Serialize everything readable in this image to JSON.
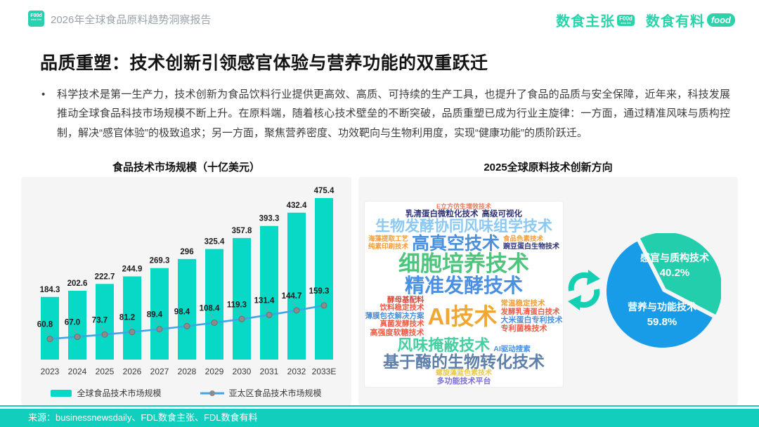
{
  "header": {
    "logo_main": "F00d",
    "logo_sub": "data link",
    "report_title": "2026年全球食品原料趋势洞察报告",
    "brand1": "数食主张",
    "brand1_badge_main": "F00d",
    "brand1_badge_sub": "data link",
    "brand2": "数食有料",
    "brand2_badge": "food"
  },
  "title": "品质重塑：技术创新引领感官体验与营养功能的双重跃迁",
  "bullet": "•",
  "body_text": "科学技术是第一生产力，技术创新为食品饮料行业提供更高效、高质、可持续的生产工具，也提升了食品的品质与安全保障，近年来，科技发展推动全球食品科技市场规模不断上升。在原料端，随着核心技术壁垒的不断突破，品质重塑已成为行业主旋律：一方面，通过精准风味与质构控制，解决“感官体验”的极致追求；另一方面，聚焦营养密度、功效靶向与生物利用度，实现“健康功能”的质阶跃迁。",
  "colors": {
    "teal_bar": "#08d8c6",
    "teal_footer": "#12cfbd",
    "teal_brand": "#2bd3ab",
    "line_blue": "#3ea5e8",
    "marker_gray": "#8b8b8b",
    "pie_teal": "#23ceac",
    "pie_blue": "#189ce8",
    "card_bg": "#f5f5f6"
  },
  "chart_data": [
    {
      "type": "bar",
      "title": "食品技术市场规模（十亿美元）",
      "categories": [
        "2023",
        "2024",
        "2025",
        "2026",
        "2027",
        "2028",
        "2029",
        "2030",
        "2031",
        "2032",
        "2033E"
      ],
      "series": [
        {
          "name": "全球食品技术市场规模",
          "render": "bar",
          "color": "#08d8c6",
          "values": [
            184.3,
            202.6,
            222.7,
            244.9,
            269.3,
            296,
            325.4,
            357.8,
            393.3,
            432.4,
            475.4
          ],
          "labels": [
            "184.3",
            "202.6",
            "222.7",
            "244.9",
            "269.3",
            "296",
            "325.4",
            "357.8",
            "393.3",
            "432.4",
            "475.4"
          ]
        },
        {
          "name": "亚太区食品技术市场规模",
          "render": "line",
          "color": "#3ea5e8",
          "values": [
            60.8,
            67.0,
            73.7,
            81.2,
            89.4,
            98.4,
            108.4,
            119.3,
            131.4,
            144.7,
            159.3
          ],
          "labels": [
            "60.8",
            "67.0",
            "73.7",
            "81.2",
            "89.4",
            "98.4",
            "108.4",
            "119.3",
            "131.4",
            "144.7",
            "159.3"
          ]
        }
      ],
      "ylim": [
        0,
        500
      ],
      "grid": false,
      "legend_position": "bottom"
    },
    {
      "type": "pie",
      "title": "2025全球原料技术创新方向",
      "labels": [
        "感官与质构技术",
        "营养与功能技术"
      ],
      "values": [
        40.2,
        59.8
      ],
      "pct_labels": [
        "40.2%",
        "59.8%"
      ],
      "colors": [
        "#23ceac",
        "#189ce8"
      ],
      "label_pos": [
        [
          100,
          40
        ],
        [
          82,
          110
        ]
      ]
    }
  ],
  "wordcloud": {
    "rows": [
      {
        "words": [
          {
            "t": "E立方仿生增效技术",
            "c": "#ef7a5a",
            "s": 9
          }
        ]
      },
      {
        "words": [
          {
            "t": "乳清蛋白微粒化技术",
            "c": "#2c3274",
            "s": 11.5
          },
          {
            "t": "高级可视化",
            "c": "#2c3274",
            "s": 11.5
          }
        ]
      },
      {
        "words": [
          {
            "t": "生物发酵协同风味组学技术",
            "c": "#8cc9f2",
            "s": 21
          }
        ]
      },
      {
        "columns": [
          {
            "stack": [
              {
                "t": "海藻提取工艺",
                "c": "#f29d38",
                "s": 9.5
              },
              {
                "t": "纯素印刷技术",
                "c": "#f29d38",
                "s": 9.5
              }
            ]
          },
          {
            "words": [
              {
                "t": "高真空技术",
                "c": "#4a90e0",
                "s": 25
              }
            ]
          },
          {
            "stack": [
              {
                "t": "食品色素技术",
                "c": "#f29d38",
                "s": 9.5
              },
              {
                "t": "豌豆蛋白生物技术",
                "c": "#2c3274",
                "s": 10
              }
            ]
          }
        ]
      },
      {
        "words": [
          {
            "t": "细胞培养技术",
            "c": "#4fc47c",
            "s": 31
          }
        ]
      },
      {
        "words": [
          {
            "t": "精准发酵技术",
            "c": "#4a90e2",
            "s": 28
          }
        ]
      },
      {
        "columns": [
          {
            "stack": [
              {
                "t": "酵母基配料",
                "c": "#d14a3c",
                "s": 10.5
              },
              {
                "t": "饮料稳定技术",
                "c": "#ee5a46",
                "s": 10.5
              },
              {
                "t": "薄膜包衣解决方案",
                "c": "#4a90e0",
                "s": 10.5
              },
              {
                "t": "真菌发酵技术",
                "c": "#ee5a46",
                "s": 10.5
              },
              {
                "t": "高强度软糖技术",
                "c": "#ee5a46",
                "s": 11
              }
            ]
          },
          {
            "words": [
              {
                "t": "AI技术",
                "c": "#f0a832",
                "s": 33
              }
            ]
          },
          {
            "stack": [
              {
                "t": "常温稳定技术",
                "c": "#f29d38",
                "s": 10.5
              },
              {
                "t": "发酵乳清蛋白技术",
                "c": "#ee5a46",
                "s": 10.5
              },
              {
                "t": "大米蛋白专利技术",
                "c": "#4a90e0",
                "s": 11
              },
              {
                "t": "专利菌株技术",
                "c": "#ee5a46",
                "s": 11
              }
            ]
          }
        ]
      },
      {
        "align": "end",
        "words": [
          {
            "t": "风味掩蔽技术",
            "c": "#46cfa0",
            "s": 22
          },
          {
            "t": "AI驱动搜索",
            "c": "#4a90e0",
            "s": 10.5
          }
        ]
      },
      {
        "words": [
          {
            "t": "基于酶的生物转化技术",
            "c": "#5d7fa9",
            "s": 23
          }
        ]
      },
      {
        "words": [
          {
            "t": "螺旋藻蓝色素技术",
            "c": "#eac94f",
            "s": 10
          }
        ]
      },
      {
        "words": [
          {
            "t": "多功能技术平台",
            "c": "#7a6ed6",
            "s": 11
          }
        ]
      }
    ]
  },
  "footer": {
    "source": "来源：businessnewsdaily、FDL数食主张、FDL数食有料"
  }
}
